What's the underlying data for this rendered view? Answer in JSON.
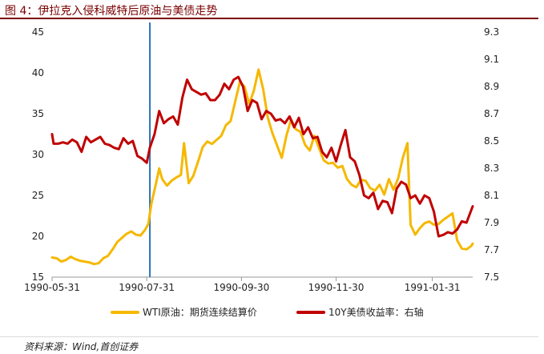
{
  "figure": {
    "title": "图 4：伊拉克入侵科威特后原油与美债走势",
    "source": "资料来源：Wind,首创证券"
  },
  "chart_data": {
    "type": "line",
    "title": "",
    "x_type": "date",
    "x_range": [
      "1990-05-31",
      "1991-02-26"
    ],
    "x_ticks": [
      "1990-05-31",
      "1990-07-31",
      "1990-09-30",
      "1990-11-30",
      "1991-01-31"
    ],
    "y_left": {
      "range": [
        15,
        45
      ],
      "ticks": [
        "15",
        "20",
        "25",
        "30",
        "35",
        "40",
        "45"
      ]
    },
    "y_right": {
      "range": [
        7.5,
        9.3
      ],
      "ticks": [
        "7.5",
        "7.7",
        "7.9",
        "8.1",
        "8.3",
        "8.5",
        "8.7",
        "8.9",
        "9.1",
        "9.3"
      ]
    },
    "event_line": {
      "date": "1990-08-02",
      "color": "#2e75b6"
    },
    "legend": {
      "placement": "bottom"
    },
    "grid": false,
    "series": [
      {
        "name": "WTI原油：期货连续结算价",
        "axis": "left",
        "color": "#f5b800",
        "points": [
          [
            "1990-05-31",
            17.4
          ],
          [
            "1990-06-03",
            17.3
          ],
          [
            "1990-06-06",
            16.9
          ],
          [
            "1990-06-09",
            17.1
          ],
          [
            "1990-06-12",
            17.5
          ],
          [
            "1990-06-15",
            17.2
          ],
          [
            "1990-06-18",
            17.0
          ],
          [
            "1990-06-21",
            16.9
          ],
          [
            "1990-06-24",
            16.8
          ],
          [
            "1990-06-27",
            16.6
          ],
          [
            "1990-06-30",
            16.7
          ],
          [
            "1990-07-03",
            17.3
          ],
          [
            "1990-07-06",
            17.6
          ],
          [
            "1990-07-09",
            18.4
          ],
          [
            "1990-07-12",
            19.3
          ],
          [
            "1990-07-15",
            19.8
          ],
          [
            "1990-07-18",
            20.3
          ],
          [
            "1990-07-21",
            20.6
          ],
          [
            "1990-07-24",
            20.2
          ],
          [
            "1990-07-27",
            20.1
          ],
          [
            "1990-07-30",
            20.8
          ],
          [
            "1990-08-01",
            21.5
          ],
          [
            "1990-08-03",
            24.0
          ],
          [
            "1990-08-06",
            26.5
          ],
          [
            "1990-08-08",
            28.3
          ],
          [
            "1990-08-10",
            27.0
          ],
          [
            "1990-08-13",
            26.2
          ],
          [
            "1990-08-16",
            26.8
          ],
          [
            "1990-08-19",
            27.2
          ],
          [
            "1990-08-22",
            27.5
          ],
          [
            "1990-08-24",
            31.4
          ],
          [
            "1990-08-27",
            26.5
          ],
          [
            "1990-08-30",
            27.4
          ],
          [
            "1990-09-02",
            29.1
          ],
          [
            "1990-09-05",
            30.9
          ],
          [
            "1990-09-08",
            31.6
          ],
          [
            "1990-09-11",
            31.3
          ],
          [
            "1990-09-14",
            31.8
          ],
          [
            "1990-09-17",
            32.3
          ],
          [
            "1990-09-20",
            33.6
          ],
          [
            "1990-09-23",
            34.1
          ],
          [
            "1990-09-26",
            36.5
          ],
          [
            "1990-09-29",
            38.9
          ],
          [
            "1990-10-02",
            38.3
          ],
          [
            "1990-10-05",
            36.2
          ],
          [
            "1990-10-08",
            37.8
          ],
          [
            "1990-10-11",
            40.4
          ],
          [
            "1990-10-14",
            38.0
          ],
          [
            "1990-10-17",
            34.5
          ],
          [
            "1990-10-20",
            32.6
          ],
          [
            "1990-10-23",
            31.1
          ],
          [
            "1990-10-26",
            29.6
          ],
          [
            "1990-10-29",
            32.3
          ],
          [
            "1990-11-01",
            34.3
          ],
          [
            "1990-11-04",
            33.1
          ],
          [
            "1990-11-07",
            32.8
          ],
          [
            "1990-11-10",
            31.2
          ],
          [
            "1990-11-13",
            30.5
          ],
          [
            "1990-11-16",
            32.3
          ],
          [
            "1990-11-19",
            30.8
          ],
          [
            "1990-11-22",
            29.3
          ],
          [
            "1990-11-25",
            28.9
          ],
          [
            "1990-11-28",
            29.0
          ],
          [
            "1990-12-01",
            28.4
          ],
          [
            "1990-12-04",
            28.6
          ],
          [
            "1990-12-07",
            27.0
          ],
          [
            "1990-12-10",
            26.3
          ],
          [
            "1990-12-13",
            26.0
          ],
          [
            "1990-12-16",
            26.9
          ],
          [
            "1990-12-19",
            26.8
          ],
          [
            "1990-12-22",
            25.9
          ],
          [
            "1990-12-25",
            25.6
          ],
          [
            "1990-12-28",
            26.3
          ],
          [
            "1990-12-31",
            25.1
          ],
          [
            "1991-01-03",
            27.0
          ],
          [
            "1991-01-06",
            25.7
          ],
          [
            "1991-01-09",
            27.1
          ],
          [
            "1991-01-12",
            29.6
          ],
          [
            "1991-01-15",
            31.4
          ],
          [
            "1991-01-16",
            26.0
          ],
          [
            "1991-01-17",
            21.4
          ],
          [
            "1991-01-20",
            20.2
          ],
          [
            "1991-01-23",
            21.0
          ],
          [
            "1991-01-26",
            21.6
          ],
          [
            "1991-01-29",
            21.8
          ],
          [
            "1991-02-01",
            21.4
          ],
          [
            "1991-02-04",
            21.5
          ],
          [
            "1991-02-07",
            22.0
          ],
          [
            "1991-02-10",
            22.4
          ],
          [
            "1991-02-13",
            22.8
          ],
          [
            "1991-02-16",
            19.5
          ],
          [
            "1991-02-19",
            18.5
          ],
          [
            "1991-02-22",
            18.4
          ],
          [
            "1991-02-25",
            18.8
          ],
          [
            "1991-02-26",
            19.1
          ]
        ]
      },
      {
        "name": "10Y美债收益率：右轴",
        "axis": "right",
        "color": "#c00000",
        "points": [
          [
            "1990-05-31",
            8.55
          ],
          [
            "1990-06-01",
            8.48
          ],
          [
            "1990-06-04",
            8.48
          ],
          [
            "1990-06-07",
            8.49
          ],
          [
            "1990-06-10",
            8.48
          ],
          [
            "1990-06-13",
            8.51
          ],
          [
            "1990-06-16",
            8.49
          ],
          [
            "1990-06-19",
            8.42
          ],
          [
            "1990-06-22",
            8.53
          ],
          [
            "1990-06-25",
            8.49
          ],
          [
            "1990-06-28",
            8.51
          ],
          [
            "1990-07-01",
            8.53
          ],
          [
            "1990-07-04",
            8.48
          ],
          [
            "1990-07-07",
            8.47
          ],
          [
            "1990-07-10",
            8.45
          ],
          [
            "1990-07-13",
            8.44
          ],
          [
            "1990-07-16",
            8.52
          ],
          [
            "1990-07-19",
            8.48
          ],
          [
            "1990-07-22",
            8.5
          ],
          [
            "1990-07-25",
            8.39
          ],
          [
            "1990-07-28",
            8.37
          ],
          [
            "1990-07-31",
            8.34
          ],
          [
            "1990-08-02",
            8.45
          ],
          [
            "1990-08-05",
            8.55
          ],
          [
            "1990-08-08",
            8.72
          ],
          [
            "1990-08-11",
            8.63
          ],
          [
            "1990-08-14",
            8.66
          ],
          [
            "1990-08-17",
            8.68
          ],
          [
            "1990-08-20",
            8.62
          ],
          [
            "1990-08-23",
            8.82
          ],
          [
            "1990-08-26",
            8.95
          ],
          [
            "1990-08-29",
            8.88
          ],
          [
            "1990-09-01",
            8.86
          ],
          [
            "1990-09-04",
            8.84
          ],
          [
            "1990-09-07",
            8.85
          ],
          [
            "1990-09-10",
            8.8
          ],
          [
            "1990-09-13",
            8.8
          ],
          [
            "1990-09-16",
            8.84
          ],
          [
            "1990-09-19",
            8.92
          ],
          [
            "1990-09-22",
            8.88
          ],
          [
            "1990-09-25",
            8.95
          ],
          [
            "1990-09-28",
            8.97
          ],
          [
            "1990-10-01",
            8.9
          ],
          [
            "1990-10-04",
            8.72
          ],
          [
            "1990-10-07",
            8.8
          ],
          [
            "1990-10-10",
            8.78
          ],
          [
            "1990-10-13",
            8.66
          ],
          [
            "1990-10-16",
            8.72
          ],
          [
            "1990-10-19",
            8.7
          ],
          [
            "1990-10-22",
            8.65
          ],
          [
            "1990-10-25",
            8.66
          ],
          [
            "1990-10-28",
            8.63
          ],
          [
            "1990-10-31",
            8.68
          ],
          [
            "1990-11-03",
            8.6
          ],
          [
            "1990-11-06",
            8.67
          ],
          [
            "1990-11-09",
            8.55
          ],
          [
            "1990-11-12",
            8.6
          ],
          [
            "1990-11-15",
            8.52
          ],
          [
            "1990-11-18",
            8.53
          ],
          [
            "1990-11-21",
            8.42
          ],
          [
            "1990-11-24",
            8.38
          ],
          [
            "1990-11-27",
            8.45
          ],
          [
            "1990-11-30",
            8.35
          ],
          [
            "1990-12-03",
            8.47
          ],
          [
            "1990-12-06",
            8.58
          ],
          [
            "1990-12-09",
            8.38
          ],
          [
            "1990-12-12",
            8.35
          ],
          [
            "1990-12-15",
            8.25
          ],
          [
            "1990-12-18",
            8.1
          ],
          [
            "1990-12-21",
            8.08
          ],
          [
            "1990-12-24",
            8.12
          ],
          [
            "1990-12-27",
            8.0
          ],
          [
            "1990-12-30",
            8.06
          ],
          [
            "1991-01-02",
            8.05
          ],
          [
            "1991-01-05",
            7.97
          ],
          [
            "1991-01-08",
            8.15
          ],
          [
            "1991-01-11",
            8.2
          ],
          [
            "1991-01-14",
            8.18
          ],
          [
            "1991-01-17",
            8.08
          ],
          [
            "1991-01-20",
            8.1
          ],
          [
            "1991-01-23",
            8.04
          ],
          [
            "1991-01-26",
            8.1
          ],
          [
            "1991-01-29",
            8.08
          ],
          [
            "1991-02-01",
            7.98
          ],
          [
            "1991-02-04",
            7.8
          ],
          [
            "1991-02-07",
            7.81
          ],
          [
            "1991-02-10",
            7.83
          ],
          [
            "1991-02-13",
            7.82
          ],
          [
            "1991-02-16",
            7.85
          ],
          [
            "1991-02-19",
            7.91
          ],
          [
            "1991-02-22",
            7.9
          ],
          [
            "1991-02-26",
            8.02
          ]
        ]
      }
    ]
  }
}
